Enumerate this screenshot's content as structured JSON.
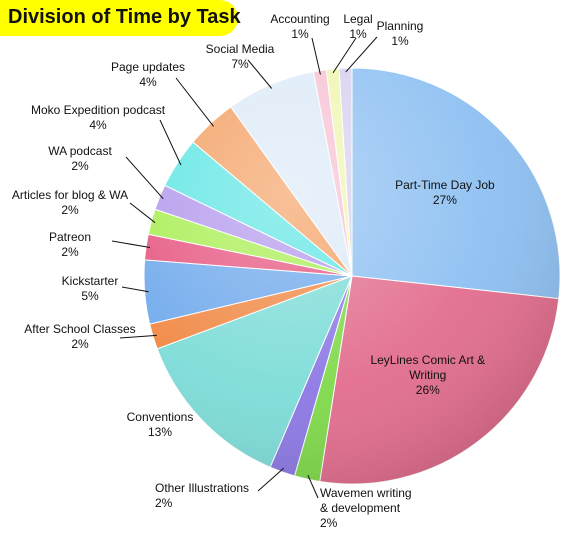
{
  "chart_data": {
    "type": "pie",
    "title": "Division of Time by Task",
    "colors": {
      "title_highlight": "#ffff00"
    },
    "slices": [
      {
        "label": "Part-Time Day Job",
        "value": 27,
        "pct_label": "27%",
        "color": "#8ec0f2",
        "label_lines": [
          "Part-Time Day Job"
        ],
        "inside": true
      },
      {
        "label": "LeyLines Comic Art & Writing",
        "value": 26,
        "pct_label": "26%",
        "color": "#e26d8e",
        "label_lines": [
          "LeyLines Comic Art &",
          "Writing"
        ],
        "inside": true
      },
      {
        "label": "Wavemen writing & development",
        "value": 2,
        "pct_label": "2%",
        "color": "#7fd94a",
        "label_lines": [
          "Wavemen writing",
          "& development"
        ],
        "inside": false
      },
      {
        "label": "Other Illustrations",
        "value": 2,
        "pct_label": "2%",
        "color": "#8c78e4",
        "label_lines": [
          "Other Illustrations"
        ],
        "inside": false
      },
      {
        "label": "Conventions",
        "value": 13,
        "pct_label": "13%",
        "color": "#7ddcd8",
        "label_lines": [
          "Conventions"
        ],
        "inside": false
      },
      {
        "label": "After School Classes",
        "value": 2,
        "pct_label": "2%",
        "color": "#f08844",
        "label_lines": [
          "After School Classes"
        ],
        "inside": false
      },
      {
        "label": "Kickstarter",
        "value": 5,
        "pct_label": "5%",
        "color": "#6fa9ec",
        "label_lines": [
          "Kickstarter"
        ],
        "inside": false
      },
      {
        "label": "Patreon",
        "value": 2,
        "pct_label": "2%",
        "color": "#e65580",
        "label_lines": [
          "Patreon"
        ],
        "inside": false
      },
      {
        "label": "Articles for blog & WA",
        "value": 2,
        "pct_label": "2%",
        "color": "#a8ee52",
        "label_lines": [
          "Articles for blog & WA"
        ],
        "inside": false
      },
      {
        "label": "WA podcast",
        "value": 2,
        "pct_label": "2%",
        "color": "#b298ec",
        "label_lines": [
          "WA podcast"
        ],
        "inside": false
      },
      {
        "label": "Moko Expedition podcast",
        "value": 4,
        "pct_label": "4%",
        "color": "#5fe6e4",
        "label_lines": [
          "Moko Expedition podcast"
        ],
        "inside": false
      },
      {
        "label": "Page updates",
        "value": 4,
        "pct_label": "4%",
        "color": "#f4a063",
        "label_lines": [
          "Page updates"
        ],
        "inside": false
      },
      {
        "label": "Social Media",
        "value": 7,
        "pct_label": "7%",
        "color": "#dceaf8",
        "label_lines": [
          "Social Media"
        ],
        "inside": false
      },
      {
        "label": "Accounting",
        "value": 1,
        "pct_label": "1%",
        "color": "#f7c2d3",
        "label_lines": [
          "Accounting"
        ],
        "inside": false
      },
      {
        "label": "Legal",
        "value": 1,
        "pct_label": "1%",
        "color": "#f0f5b0",
        "label_lines": [
          "Legal"
        ],
        "inside": false
      },
      {
        "label": "Planning",
        "value": 1,
        "pct_label": "1%",
        "color": "#d8d0ef",
        "label_lines": [
          "Planning"
        ],
        "inside": false
      }
    ]
  }
}
